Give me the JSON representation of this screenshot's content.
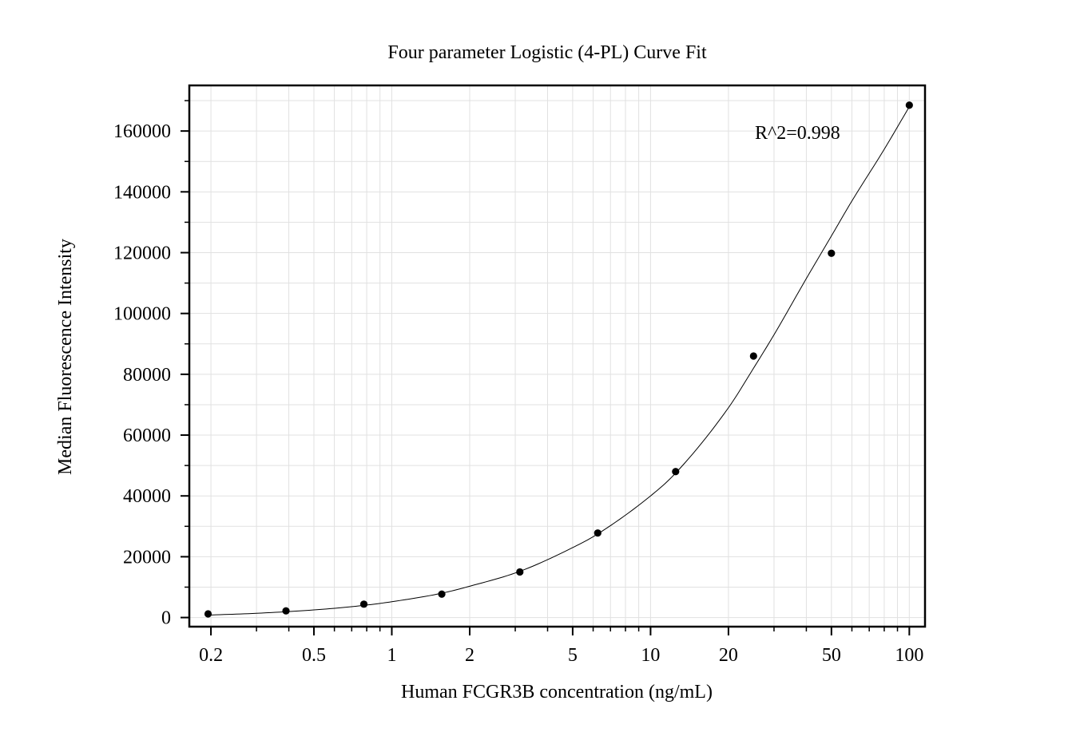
{
  "chart_data": {
    "type": "scatter",
    "title": "Four parameter Logistic (4-PL) Curve Fit",
    "xlabel": "Human FCGR3B concentration (ng/mL)",
    "ylabel": "Median Fluorescence Intensity",
    "x_scale": "log",
    "xlim": [
      0.165,
      115
    ],
    "ylim": [
      -3000,
      175000
    ],
    "x_ticks": [
      0.2,
      0.5,
      1,
      2,
      5,
      10,
      20,
      50,
      100
    ],
    "x_tick_labels": [
      "0.2",
      "0.5",
      "1",
      "2",
      "5",
      "10",
      "20",
      "50",
      "100"
    ],
    "y_ticks": [
      0,
      20000,
      40000,
      60000,
      80000,
      100000,
      120000,
      140000,
      160000
    ],
    "y_tick_labels": [
      "0",
      "20000",
      "40000",
      "60000",
      "80000",
      "100000",
      "120000",
      "140000",
      "160000"
    ],
    "grid": true,
    "annotation": "R^2=0.998",
    "series": [
      {
        "kind": "points",
        "x": [
          0.195,
          0.39,
          0.78,
          1.56,
          3.125,
          6.25,
          12.5,
          25,
          50,
          100
        ],
        "y": [
          1200,
          2200,
          4400,
          7700,
          15000,
          27800,
          48000,
          86000,
          119800,
          168500
        ]
      },
      {
        "kind": "fit",
        "x": [
          0.195,
          0.3,
          0.5,
          0.78,
          1,
          1.56,
          2,
          3.125,
          5,
          6.25,
          10,
          12.5,
          20,
          25,
          30,
          40,
          50,
          60,
          80,
          100
        ],
        "y": [
          800,
          1400,
          2500,
          4000,
          5200,
          8000,
          10300,
          15200,
          23000,
          27500,
          40000,
          47500,
          69000,
          82000,
          93000,
          111500,
          125500,
          137000,
          154000,
          168000
        ]
      }
    ],
    "colors": {
      "points": "#000000",
      "line": "#000000",
      "grid": "#e1e1e1"
    }
  }
}
